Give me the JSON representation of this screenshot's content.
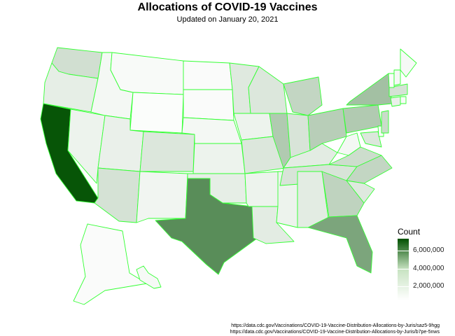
{
  "title": "Allocations of COVID-19 Vaccines",
  "subtitle": "Updated on January 20, 2021",
  "legend": {
    "title": "Count",
    "ticks": [
      "6,000,000",
      "4,000,000",
      "2,000,000"
    ],
    "colors": {
      "low": "#ffffff",
      "high": "#005000",
      "border": "#33ff33"
    }
  },
  "sources": [
    "https://data.cdc.gov/Vaccinations/COVID-19-Vaccine-Distribution-Allocations-by-Juris/saz5-9hgg",
    "https://data.cdc.gov/Vaccinations/COVID-19-Vaccine-Distribution-Allocations-by-Juris/b7pe-5nws"
  ],
  "scale": {
    "min": 0,
    "max": 7200000
  },
  "states": {
    "CA": 7000000,
    "TX": 4700000,
    "FL": 3700000,
    "NY": 2600000,
    "PA": 2200000,
    "IL": 2200000,
    "OH": 2000000,
    "GA": 1800000,
    "MI": 1700000,
    "NC": 1700000,
    "NJ": 1500000,
    "VA": 1400000,
    "WA": 1300000,
    "AZ": 1200000,
    "MA": 1200000,
    "TN": 1100000,
    "IN": 1100000,
    "MO": 1000000,
    "MD": 1000000,
    "WI": 1000000,
    "CO": 1000000,
    "MN": 900000,
    "SC": 900000,
    "AL": 800000,
    "LA": 800000,
    "KY": 800000,
    "OR": 700000,
    "OK": 700000,
    "CT": 600000,
    "UT": 600000,
    "IA": 500000,
    "NV": 500000,
    "AR": 500000,
    "MS": 500000,
    "KS": 500000,
    "NM": 400000,
    "NE": 300000,
    "WV": 300000,
    "ID": 300000,
    "HI": 250000,
    "NH": 250000,
    "ME": 250000,
    "MT": 200000,
    "RI": 200000,
    "DE": 200000,
    "SD": 150000,
    "ND": 150000,
    "AK": 150000,
    "VT": 120000,
    "WY": 100000
  }
}
